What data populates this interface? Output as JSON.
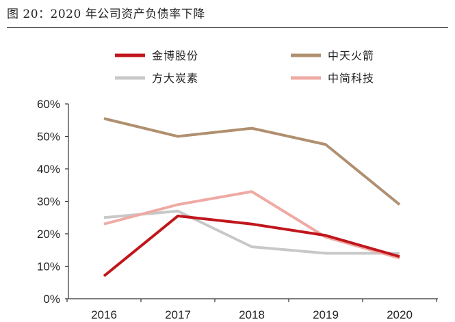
{
  "figure": {
    "title": "图 20：2020 年公司资产负债率下降"
  },
  "chart_data": {
    "type": "line",
    "title": "",
    "xlabel": "",
    "ylabel": "",
    "x": [
      "2016",
      "2017",
      "2018",
      "2019",
      "2020"
    ],
    "ylim": [
      0,
      60
    ],
    "yticks": [
      0,
      10,
      20,
      30,
      40,
      50,
      60
    ],
    "ytick_labels": [
      "0%",
      "10%",
      "20%",
      "30%",
      "40%",
      "50%",
      "60%"
    ],
    "grid": false,
    "legend_position": "top",
    "series": [
      {
        "name": "金博股份",
        "color": "#c0161c",
        "values": [
          7,
          25.5,
          23,
          19.5,
          13
        ]
      },
      {
        "name": "中天火箭",
        "color": "#b09070",
        "values": [
          55.5,
          50,
          52.5,
          47.5,
          29
        ]
      },
      {
        "name": "方大炭素",
        "color": "#c8c8c8",
        "values": [
          25,
          27,
          16,
          14,
          14
        ]
      },
      {
        "name": "中简科技",
        "color": "#efaaa4",
        "values": [
          23,
          29,
          33,
          19,
          12.5
        ]
      }
    ]
  }
}
